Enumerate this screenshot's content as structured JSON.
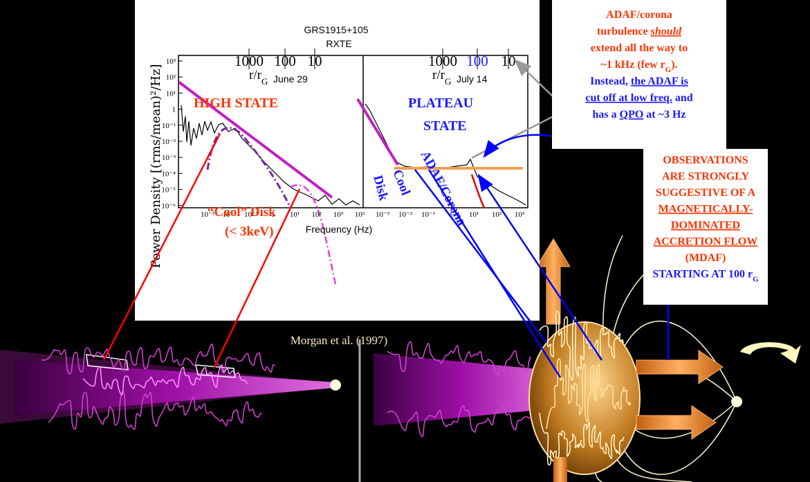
{
  "figure": {
    "title": "GRS1915+105",
    "subtitle": "RXTE",
    "y_label": "Power Density [(rms/mean)²/Hz]",
    "x_label": "Frequency (Hz)",
    "y_ticks": [
      "10³",
      "10²",
      "10¹",
      "1",
      "10⁻¹",
      "10⁻²",
      "10⁻³",
      "10⁻⁴",
      "10⁻⁵",
      "10⁻⁶"
    ],
    "panels": [
      {
        "top_ticks": [
          "1000",
          "100",
          "10"
        ],
        "top_axis_label": {
          "main": "r/r",
          "sub": "G"
        },
        "date": "June 29",
        "x_ticks": [
          "10⁻³",
          "10⁻²",
          "10⁻¹",
          "1",
          "10¹",
          "10²",
          "10³"
        ],
        "state": [
          "HIGH STATE"
        ],
        "disk_label": [
          "“Cool” Disk",
          "(< 3keV)"
        ]
      },
      {
        "top_ticks": [
          "1000",
          "100",
          "10"
        ],
        "top_axis_label": {
          "main": "r/r",
          "sub": "G"
        },
        "date": "July 14",
        "x_ticks": [
          "10³",
          "10⁻³",
          "10⁻²",
          "10⁻¹",
          "1",
          "10¹",
          "10²",
          "10³"
        ],
        "state": [
          "PLATEAU",
          "STATE"
        ],
        "disk_label": [
          "Cool",
          "Disk"
        ],
        "corona_label": "ADAF/Corona"
      }
    ]
  },
  "citation": "Morgan et al. (1997)",
  "note": [
    [
      {
        "text": "ADAF/corona",
        "style": "red"
      }
    ],
    [
      {
        "text": "turbulence ",
        "style": "red"
      },
      {
        "text": "should",
        "style": "red emph"
      }
    ],
    [
      {
        "text": "extend all the way to",
        "style": "red"
      }
    ],
    [
      {
        "text": "~1 kHz (few r",
        "style": "red"
      },
      {
        "text": "G",
        "style": "red sub"
      },
      {
        "text": ").",
        "style": "red"
      }
    ],
    [
      {
        "text": "Instead, ",
        "style": "blue"
      },
      {
        "text": "the ADAF is",
        "style": "blue u"
      }
    ],
    [
      {
        "text": "cut off at low freq.",
        "style": "blue u"
      },
      {
        "text": " and",
        "style": "blue"
      }
    ],
    [
      {
        "text": "has a ",
        "style": "blue"
      },
      {
        "text": "QPO",
        "style": "blue u"
      },
      {
        "text": " at ~3 Hz",
        "style": "blue"
      }
    ]
  ],
  "conclusion": [
    [
      {
        "text": "OBSERVATIONS",
        "style": "red"
      }
    ],
    [
      {
        "text": "ARE STRONGLY",
        "style": "red"
      }
    ],
    [
      {
        "text": "SUGGESTIVE OF A",
        "style": "red"
      }
    ],
    [
      {
        "text": "MAGNETICALLY-",
        "style": "red u"
      }
    ],
    [
      {
        "text": "DOMINATED",
        "style": "red u"
      }
    ],
    [
      {
        "text": "ACCRETION FLOW",
        "style": "red u"
      }
    ],
    [
      {
        "text": "(MDAF)",
        "style": "red"
      }
    ],
    [
      {
        "text": "STARTING AT 100 r",
        "style": "blue"
      },
      {
        "text": "G",
        "style": "blue sub"
      }
    ]
  ]
}
